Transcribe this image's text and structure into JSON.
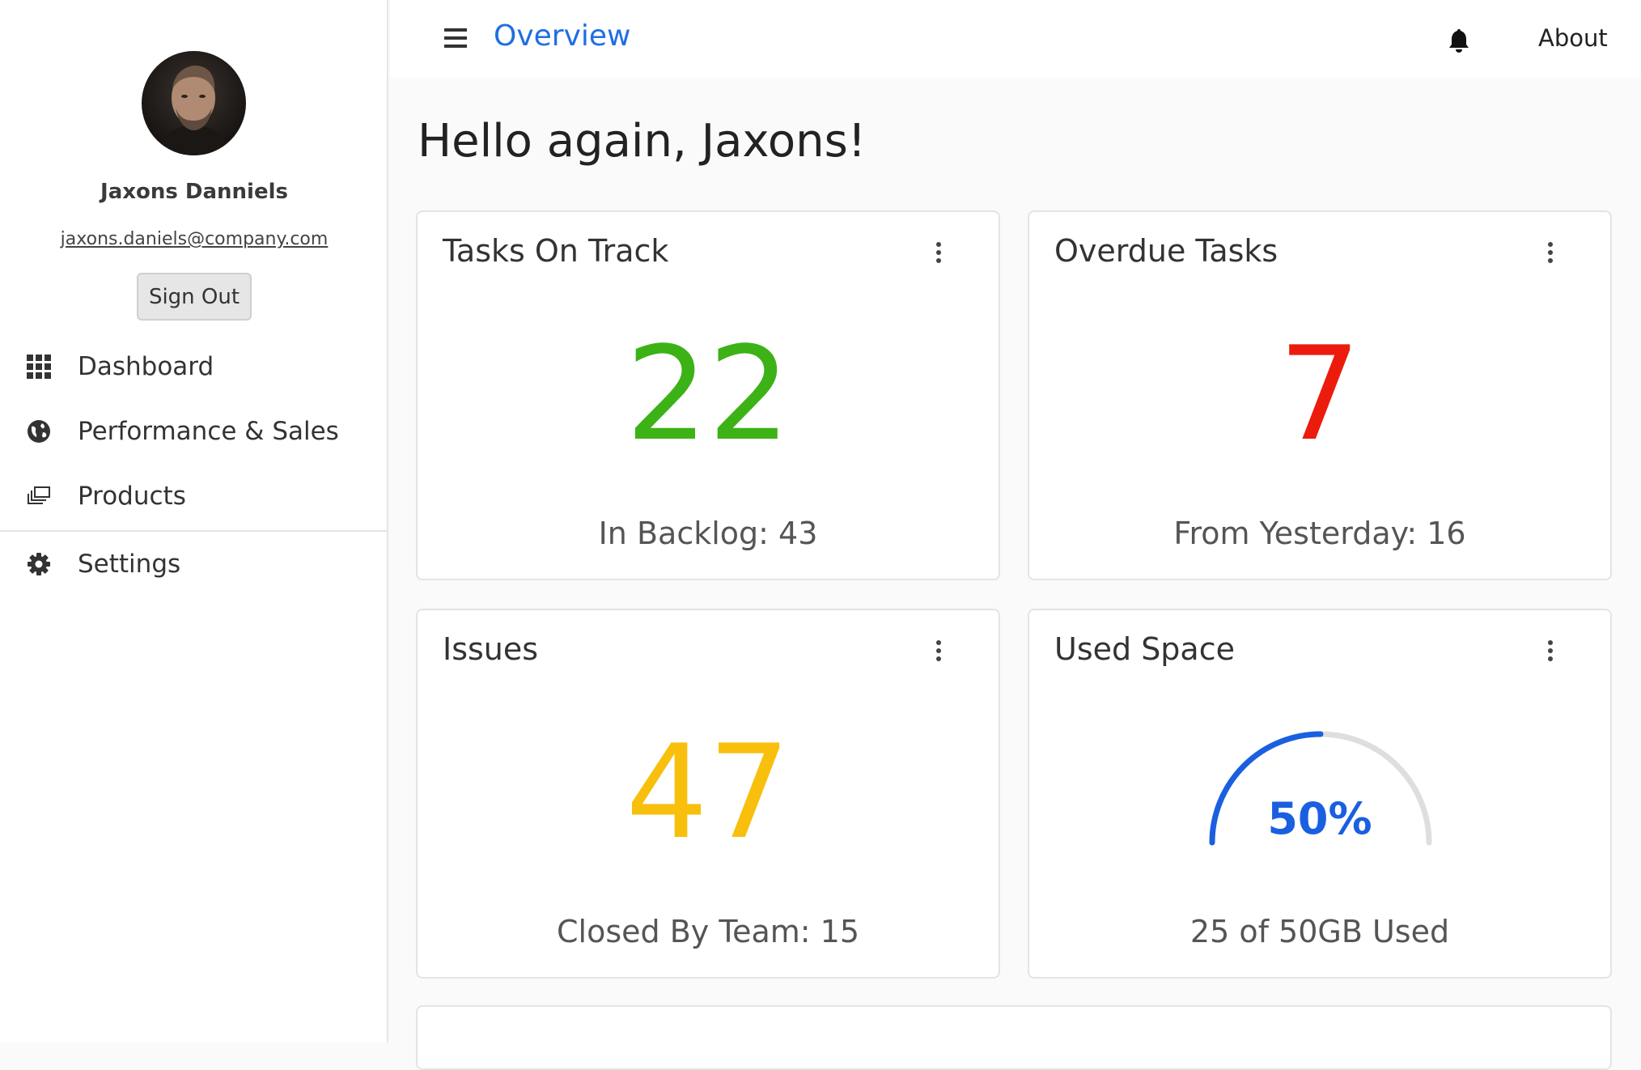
{
  "user": {
    "name": "Jaxons Danniels",
    "email": "jaxons.daniels@company.com",
    "sign_out_label": "Sign Out"
  },
  "nav": {
    "items": [
      {
        "label": "Dashboard",
        "icon": "grid-icon"
      },
      {
        "label": "Performance & Sales",
        "icon": "globe-icon"
      },
      {
        "label": "Products",
        "icon": "layers-icon"
      },
      {
        "label": "Settings",
        "icon": "gear-icon"
      }
    ]
  },
  "header": {
    "title": "Overview",
    "about_label": "About",
    "accent_color": "#1e6fe3"
  },
  "greeting": "Hello again, Jaxons!",
  "cards": [
    {
      "title": "Tasks On Track",
      "value": "22",
      "subtitle": "In Backlog: 43",
      "color": "#3cb217"
    },
    {
      "title": "Overdue Tasks",
      "value": "7",
      "subtitle": "From Yesterday: 16",
      "color": "#ec1c0d"
    },
    {
      "title": "Issues",
      "value": "47",
      "subtitle": "Closed By Team: 15",
      "color": "#f8bf0c"
    },
    {
      "title": "Used Space",
      "value": "50%",
      "subtitle": "25 of 50GB Used",
      "color": "#1a5fe0",
      "fraction": 0.5
    }
  ]
}
